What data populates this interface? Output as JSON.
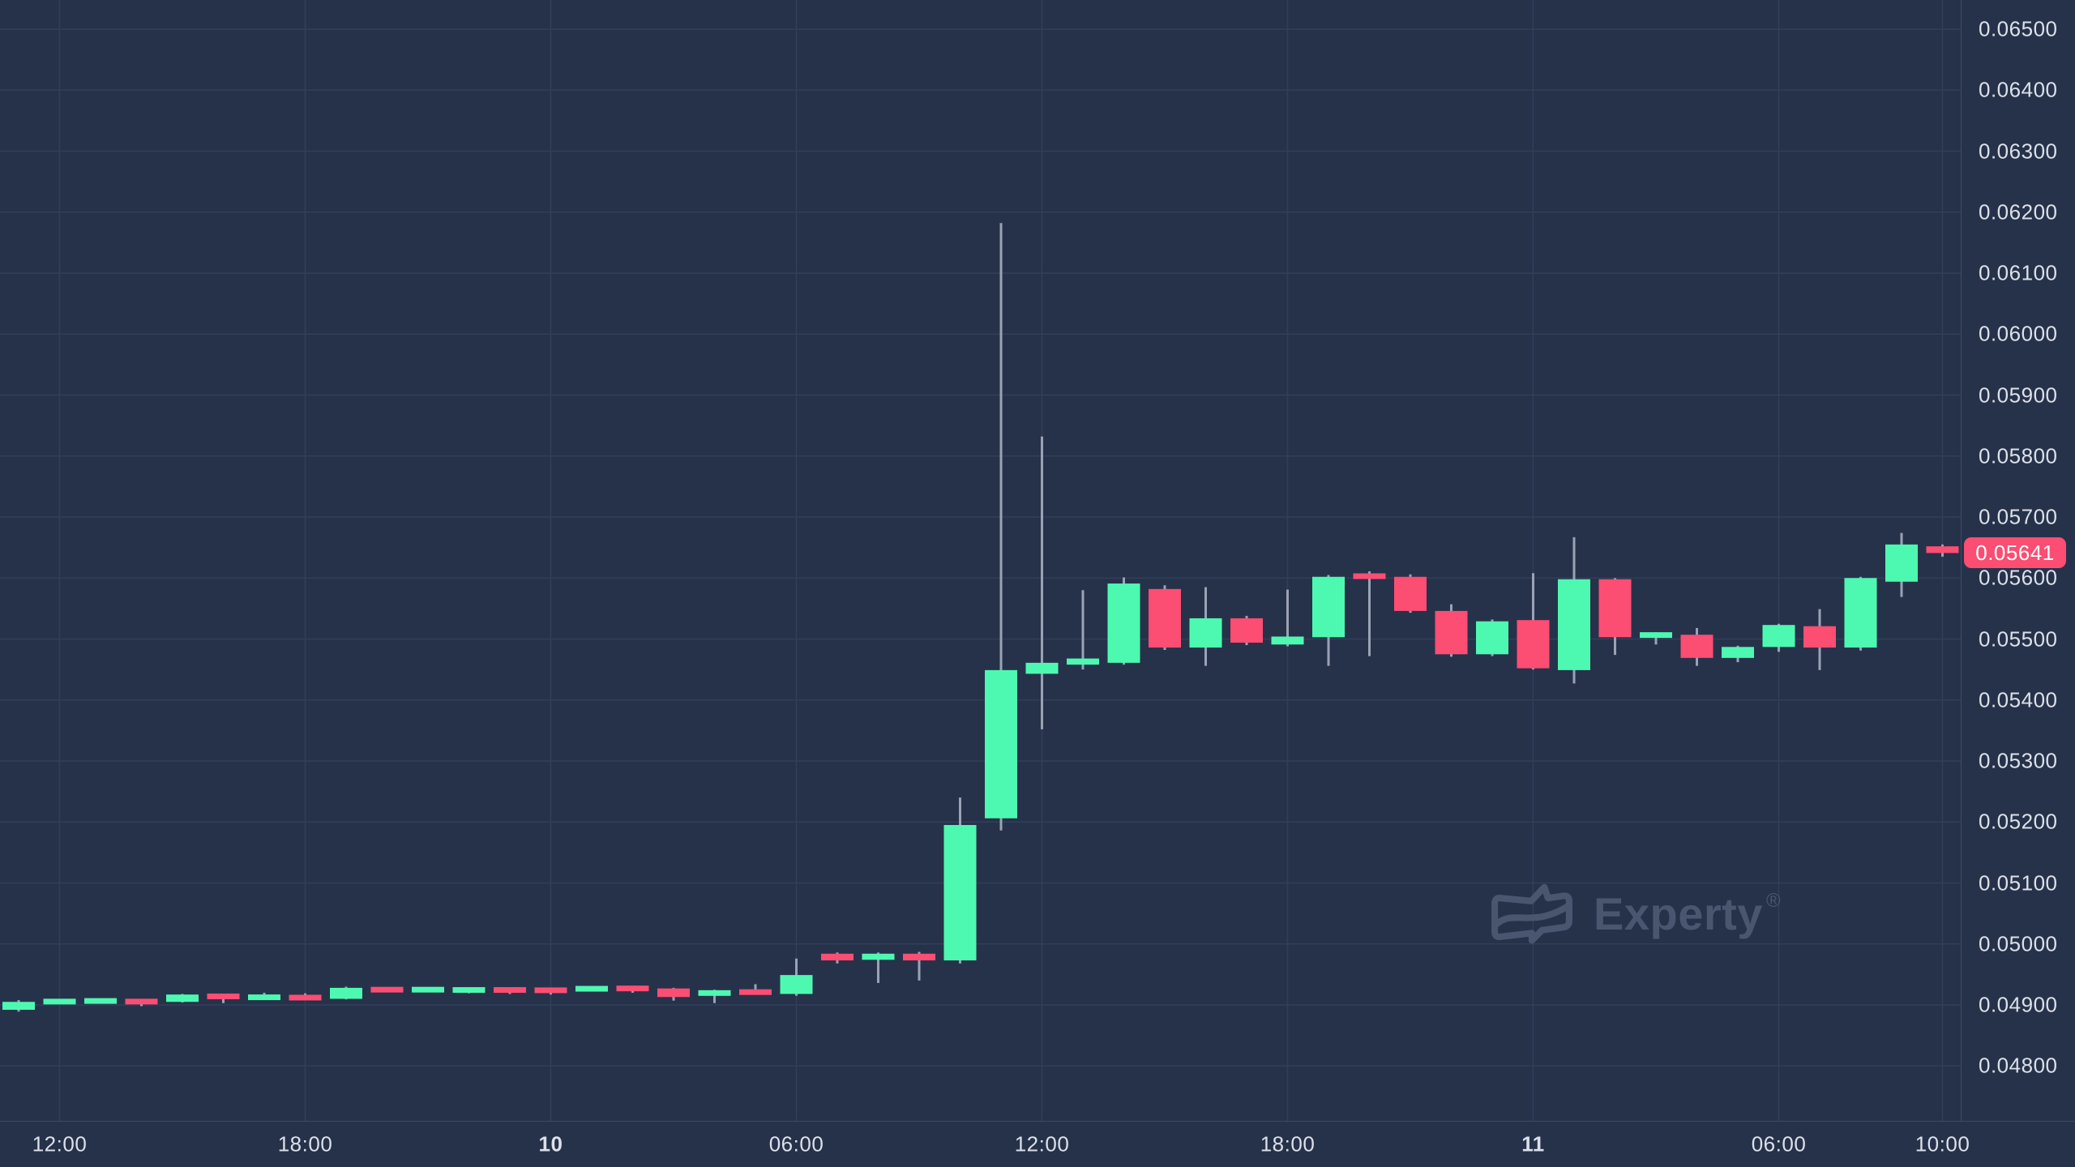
{
  "watermark": {
    "brand": "Experty",
    "registered_mark": "®"
  },
  "last_price": {
    "text": "0.05641",
    "value": 0.05641
  },
  "colors": {
    "background": "#26324a",
    "grid": "#333f59",
    "pane_border": "#3e4a66",
    "axis_text": "#dbe0ea",
    "up_candle": "#4df9b1",
    "down_candle": "#fc4d73",
    "wick": "#9aa3b5",
    "last_price_badge_bg": "#fc4d73",
    "last_price_badge_text": "#ffffff",
    "watermark_color": "#4a5670"
  },
  "chart_data": {
    "type": "candlestick",
    "interval": "1h",
    "grid": true,
    "price_axis": {
      "side": "right",
      "min": 0.048,
      "max": 0.065,
      "tick_step": 0.001,
      "labels": [
        "0.06500",
        "0.06400",
        "0.06300",
        "0.06200",
        "0.06100",
        "0.06000",
        "0.05900",
        "0.05800",
        "0.05700",
        "0.05600",
        "0.05500",
        "0.05400",
        "0.05300",
        "0.05200",
        "0.05100",
        "0.05000",
        "0.04900",
        "0.04800"
      ]
    },
    "time_axis": {
      "labels": [
        {
          "text": "12:00",
          "index": 1,
          "bold": false
        },
        {
          "text": "18:00",
          "index": 7,
          "bold": false
        },
        {
          "text": "10",
          "index": 13,
          "bold": true
        },
        {
          "text": "06:00",
          "index": 19,
          "bold": false
        },
        {
          "text": "12:00",
          "index": 25,
          "bold": false
        },
        {
          "text": "18:00",
          "index": 31,
          "bold": false
        },
        {
          "text": "11",
          "index": 37,
          "bold": true
        },
        {
          "text": "06:00",
          "index": 43,
          "bold": false
        },
        {
          "text": "10:00",
          "index": 47,
          "bold": false
        }
      ]
    },
    "candles": [
      {
        "t": "09 11:00",
        "o": 0.04892,
        "h": 0.04908,
        "l": 0.04889,
        "c": 0.04905
      },
      {
        "t": "09 12:00",
        "o": 0.04904,
        "h": 0.04909,
        "l": 0.04902,
        "c": 0.04907
      },
      {
        "t": "09 13:00",
        "o": 0.04905,
        "h": 0.0491,
        "l": 0.04903,
        "c": 0.04908
      },
      {
        "t": "09 14:00",
        "o": 0.04907,
        "h": 0.04909,
        "l": 0.04898,
        "c": 0.04904
      },
      {
        "t": "09 15:00",
        "o": 0.04905,
        "h": 0.04918,
        "l": 0.04904,
        "c": 0.04917
      },
      {
        "t": "09 16:00",
        "o": 0.04917,
        "h": 0.04918,
        "l": 0.04903,
        "c": 0.04911
      },
      {
        "t": "09 17:00",
        "o": 0.04911,
        "h": 0.0492,
        "l": 0.0491,
        "c": 0.04914
      },
      {
        "t": "09 18:00",
        "o": 0.04913,
        "h": 0.04919,
        "l": 0.0491,
        "c": 0.04911
      },
      {
        "t": "09 19:00",
        "o": 0.0491,
        "h": 0.0493,
        "l": 0.04909,
        "c": 0.04928
      },
      {
        "t": "09 20:00",
        "o": 0.04927,
        "h": 0.04928,
        "l": 0.04921,
        "c": 0.04923
      },
      {
        "t": "09 21:00",
        "o": 0.04923,
        "h": 0.04929,
        "l": 0.04922,
        "c": 0.04927
      },
      {
        "t": "09 22:00",
        "o": 0.04923,
        "h": 0.04927,
        "l": 0.04919,
        "c": 0.04926
      },
      {
        "t": "09 23:00",
        "o": 0.04926,
        "h": 0.04927,
        "l": 0.04918,
        "c": 0.04923
      },
      {
        "t": "10 00:00",
        "o": 0.04926,
        "h": 0.04927,
        "l": 0.04917,
        "c": 0.04922
      },
      {
        "t": "10 01:00",
        "o": 0.04924,
        "h": 0.0493,
        "l": 0.04922,
        "c": 0.04929
      },
      {
        "t": "10 02:00",
        "o": 0.04929,
        "h": 0.0493,
        "l": 0.0492,
        "c": 0.04925
      },
      {
        "t": "10 03:00",
        "o": 0.04927,
        "h": 0.04928,
        "l": 0.04907,
        "c": 0.04913
      },
      {
        "t": "10 04:00",
        "o": 0.04916,
        "h": 0.04925,
        "l": 0.04903,
        "c": 0.04923
      },
      {
        "t": "10 05:00",
        "o": 0.04924,
        "h": 0.04934,
        "l": 0.04917,
        "c": 0.04918
      },
      {
        "t": "10 06:00",
        "o": 0.04918,
        "h": 0.04976,
        "l": 0.04915,
        "c": 0.04949
      },
      {
        "t": "10 07:00",
        "o": 0.04984,
        "h": 0.04986,
        "l": 0.04968,
        "c": 0.04973
      },
      {
        "t": "10 08:00",
        "o": 0.04974,
        "h": 0.04986,
        "l": 0.04936,
        "c": 0.04984
      },
      {
        "t": "10 09:00",
        "o": 0.04984,
        "h": 0.04987,
        "l": 0.0494,
        "c": 0.04973
      },
      {
        "t": "10 10:00",
        "o": 0.04973,
        "h": 0.0524,
        "l": 0.04968,
        "c": 0.05195
      },
      {
        "t": "10 11:00",
        "o": 0.05206,
        "h": 0.06182,
        "l": 0.05186,
        "c": 0.05449
      },
      {
        "t": "10 12:00",
        "o": 0.05443,
        "h": 0.05832,
        "l": 0.05352,
        "c": 0.05461
      },
      {
        "t": "10 13:00",
        "o": 0.05458,
        "h": 0.0558,
        "l": 0.0545,
        "c": 0.05468
      },
      {
        "t": "10 14:00",
        "o": 0.05461,
        "h": 0.05601,
        "l": 0.05458,
        "c": 0.05591
      },
      {
        "t": "10 15:00",
        "o": 0.05582,
        "h": 0.05588,
        "l": 0.05482,
        "c": 0.05486
      },
      {
        "t": "10 16:00",
        "o": 0.05486,
        "h": 0.05585,
        "l": 0.05456,
        "c": 0.05534
      },
      {
        "t": "10 17:00",
        "o": 0.05534,
        "h": 0.05538,
        "l": 0.0549,
        "c": 0.05494
      },
      {
        "t": "10 18:00",
        "o": 0.05491,
        "h": 0.05581,
        "l": 0.05488,
        "c": 0.05504
      },
      {
        "t": "10 19:00",
        "o": 0.05503,
        "h": 0.05605,
        "l": 0.05456,
        "c": 0.05602
      },
      {
        "t": "10 20:00",
        "o": 0.05606,
        "h": 0.05611,
        "l": 0.05472,
        "c": 0.056
      },
      {
        "t": "10 21:00",
        "o": 0.05602,
        "h": 0.05606,
        "l": 0.05543,
        "c": 0.05546
      },
      {
        "t": "10 22:00",
        "o": 0.05546,
        "h": 0.05557,
        "l": 0.05471,
        "c": 0.05475
      },
      {
        "t": "10 23:00",
        "o": 0.05475,
        "h": 0.05532,
        "l": 0.05472,
        "c": 0.05529
      },
      {
        "t": "11 00:00",
        "o": 0.05531,
        "h": 0.05608,
        "l": 0.0545,
        "c": 0.05452
      },
      {
        "t": "11 01:00",
        "o": 0.05449,
        "h": 0.05667,
        "l": 0.05427,
        "c": 0.05598
      },
      {
        "t": "11 02:00",
        "o": 0.05598,
        "h": 0.056,
        "l": 0.05474,
        "c": 0.05503
      },
      {
        "t": "11 03:00",
        "o": 0.05504,
        "h": 0.05511,
        "l": 0.05491,
        "c": 0.05509
      },
      {
        "t": "11 04:00",
        "o": 0.05507,
        "h": 0.05518,
        "l": 0.05456,
        "c": 0.05469
      },
      {
        "t": "11 05:00",
        "o": 0.05469,
        "h": 0.05489,
        "l": 0.05462,
        "c": 0.05487
      },
      {
        "t": "11 06:00",
        "o": 0.05487,
        "h": 0.05525,
        "l": 0.05479,
        "c": 0.05523
      },
      {
        "t": "11 07:00",
        "o": 0.05521,
        "h": 0.05549,
        "l": 0.05449,
        "c": 0.05486
      },
      {
        "t": "11 08:00",
        "o": 0.05486,
        "h": 0.05602,
        "l": 0.05481,
        "c": 0.056
      },
      {
        "t": "11 09:00",
        "o": 0.05594,
        "h": 0.05674,
        "l": 0.05569,
        "c": 0.05655
      },
      {
        "t": "11 10:00",
        "o": 0.05652,
        "h": 0.05655,
        "l": 0.05635,
        "c": 0.05641
      }
    ]
  }
}
